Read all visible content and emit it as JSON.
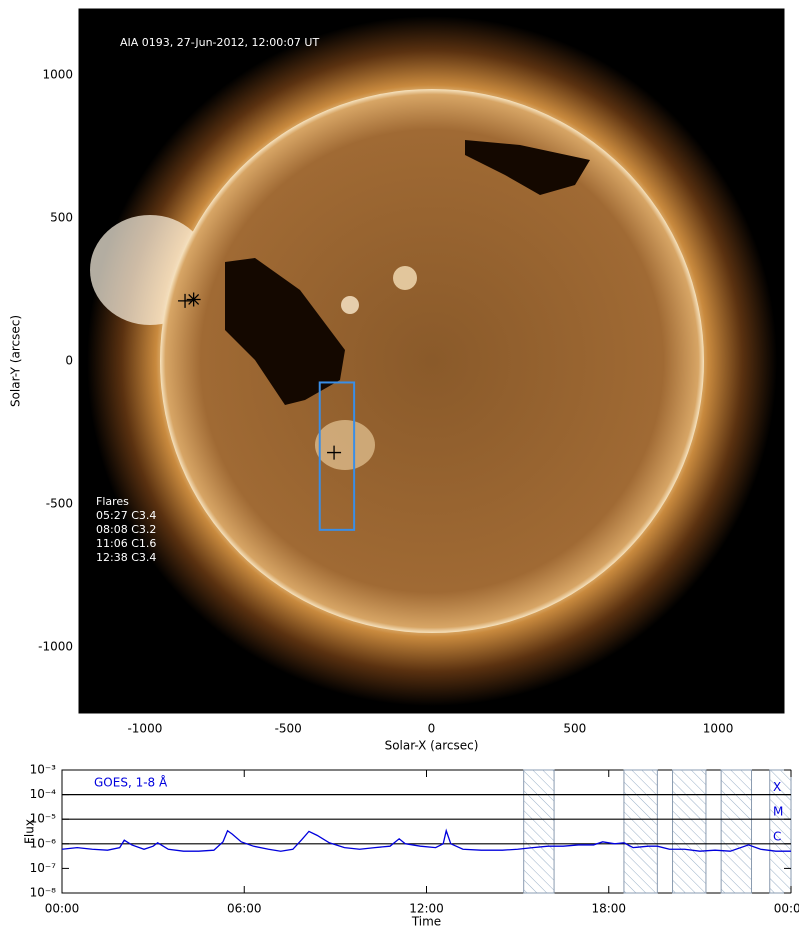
{
  "chart_data": [
    {
      "type": "image",
      "title": "AIA 0193, 27-Jun-2012, 12:00:07 UT",
      "xlabel": "Solar-X (arcsec)",
      "ylabel": "Solar-Y (arcsec)",
      "xlim": [
        -1230,
        1230
      ],
      "ylim": [
        -1230,
        1230
      ],
      "xticks": [
        -1000,
        -500,
        0,
        500,
        1000
      ],
      "yticks": [
        -1000,
        -500,
        0,
        500,
        1000
      ],
      "annotations": [
        "Flares",
        "05:27 C3.4",
        "08:08 C3.2",
        "11:06 C1.6",
        "12:38 C3.4"
      ],
      "box": {
        "x": [
          -390,
          -270
        ],
        "y": [
          -590,
          -75
        ],
        "color": "#3a8ee6"
      },
      "markers": [
        {
          "x": -340,
          "y": -320,
          "symbol": "plus"
        },
        {
          "x": -860,
          "y": 210,
          "symbol": "plus"
        },
        {
          "x": -830,
          "y": 215,
          "symbol": "star"
        }
      ]
    },
    {
      "type": "line",
      "log_y": true,
      "xlabel": "Time",
      "ylabel": "Flux",
      "annotation": "GOES, 1-8 Å",
      "xlim": [
        0,
        24
      ],
      "ylim": [
        1e-08,
        0.001
      ],
      "xticks": [
        {
          "value": 0,
          "label": "00:00"
        },
        {
          "value": 6,
          "label": "06:00"
        },
        {
          "value": 12,
          "label": "12:00"
        },
        {
          "value": 18,
          "label": "18:00"
        },
        {
          "value": 24,
          "label": "00:00"
        }
      ],
      "yticks": [
        {
          "value": 1e-08,
          "label": "10⁻⁸"
        },
        {
          "value": 1e-07,
          "label": "10⁻⁷"
        },
        {
          "value": 1e-06,
          "label": "10⁻⁶"
        },
        {
          "value": 1e-05,
          "label": "10⁻⁵"
        },
        {
          "value": 0.0001,
          "label": "10⁻⁴"
        },
        {
          "value": 0.001,
          "label": "10⁻³"
        }
      ],
      "levels": [
        {
          "value": 1e-06,
          "label": "C"
        },
        {
          "value": 1e-05,
          "label": "M"
        },
        {
          "value": 0.0001,
          "label": "X"
        }
      ],
      "shaded": [
        [
          15.2,
          16.2
        ],
        [
          18.5,
          19.6
        ],
        [
          20.1,
          21.2
        ],
        [
          21.7,
          22.7
        ],
        [
          23.3,
          24
        ]
      ],
      "x": [
        0,
        0.5,
        1,
        1.5,
        1.9,
        2.05,
        2.3,
        2.7,
        3.0,
        3.15,
        3.5,
        4,
        4.5,
        5,
        5.3,
        5.45,
        5.6,
        5.9,
        6.3,
        6.8,
        7.2,
        7.6,
        7.9,
        8.13,
        8.4,
        8.8,
        9.3,
        9.8,
        10.3,
        10.8,
        11.1,
        11.3,
        11.8,
        12.3,
        12.55,
        12.65,
        12.8,
        13.2,
        13.8,
        14.5,
        15,
        15.5,
        16,
        16.5,
        17,
        17.5,
        17.8,
        18.2,
        18.5,
        18.8,
        19.3,
        19.6,
        20,
        20.5,
        21,
        21.5,
        22,
        22.6,
        23,
        23.5,
        24
      ],
      "series": [
        {
          "name": "GOES 1-8",
          "color": "#0000dd",
          "values": [
            6e-07,
            7e-07,
            6e-07,
            5.5e-07,
            7e-07,
            1.4e-06,
            9e-07,
            6e-07,
            8e-07,
            1.1e-06,
            6e-07,
            5e-07,
            5e-07,
            5.5e-07,
            1.2e-06,
            3.4e-06,
            2.5e-06,
            1.2e-06,
            8e-07,
            6e-07,
            5e-07,
            6e-07,
            1.5e-06,
            3.2e-06,
            2.2e-06,
            1.1e-06,
            7e-07,
            6e-07,
            7e-07,
            8e-07,
            1.6e-06,
            1e-06,
            8e-07,
            7e-07,
            1e-06,
            3.4e-06,
            1e-06,
            6e-07,
            5.5e-07,
            5.5e-07,
            6e-07,
            7e-07,
            8e-07,
            8e-07,
            9e-07,
            9e-07,
            1.2e-06,
            1e-06,
            1.1e-06,
            7e-07,
            8e-07,
            8e-07,
            6e-07,
            6e-07,
            5e-07,
            5.5e-07,
            5e-07,
            9e-07,
            6e-07,
            5e-07,
            5e-07
          ]
        }
      ]
    }
  ]
}
